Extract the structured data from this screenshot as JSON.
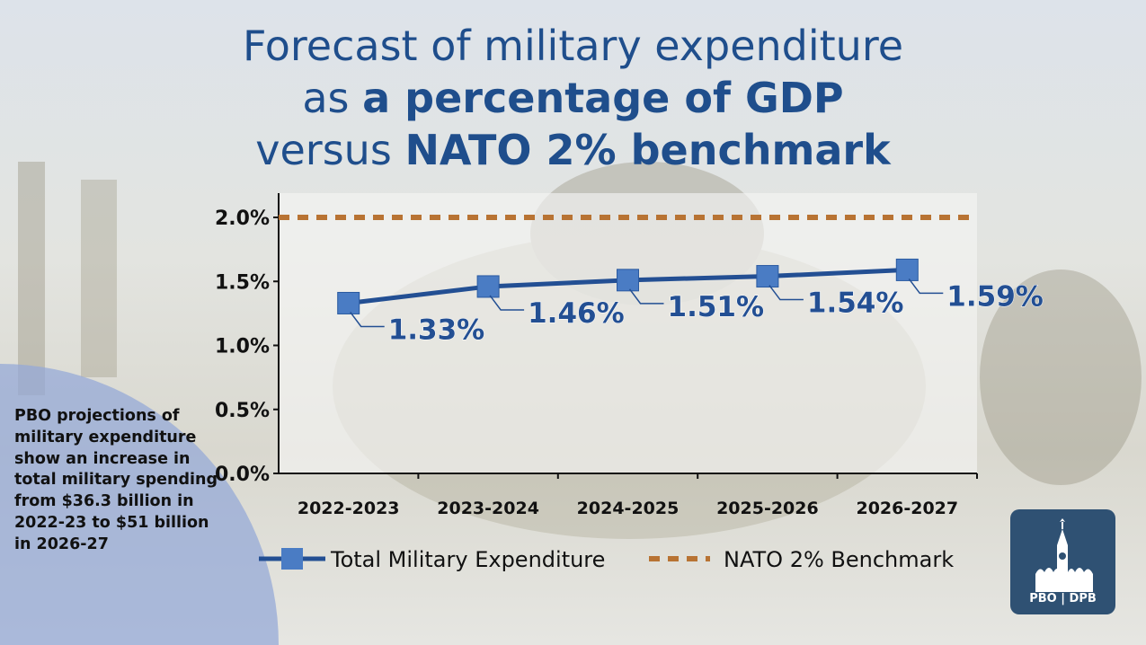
{
  "title": {
    "line1": "Forecast of military expenditure",
    "line2_pre": "as ",
    "line2_bold": "a percentage of GDP",
    "line3_pre": "versus ",
    "line3_bold": "NATO 2% benchmark"
  },
  "side_text": "PBO projections of military expenditure show an increase in total military spending from $36.3 billion in 2022-23 to $51 billion in 2026-27",
  "logo": {
    "text": "PBO | DPB"
  },
  "chart_data": {
    "type": "line",
    "categories": [
      "2022-2023",
      "2023-2024",
      "2024-2025",
      "2025-2026",
      "2026-2027"
    ],
    "ylim": [
      0,
      2.0
    ],
    "yticks": [
      "0.0%",
      "0.5%",
      "1.0%",
      "1.5%",
      "2.0%"
    ],
    "series": [
      {
        "name": "Total Military Expenditure",
        "values": [
          1.33,
          1.46,
          1.51,
          1.54,
          1.59
        ],
        "labels": [
          "1.33%",
          "1.46%",
          "1.51%",
          "1.54%",
          "1.59%"
        ],
        "color": "#234f93",
        "marker": "square"
      },
      {
        "name": "NATO 2% Benchmark",
        "values": [
          2.0,
          2.0,
          2.0,
          2.0,
          2.0
        ],
        "color": "#b87333",
        "style": "dashed"
      }
    ],
    "legend": "bottom",
    "grid": false
  }
}
